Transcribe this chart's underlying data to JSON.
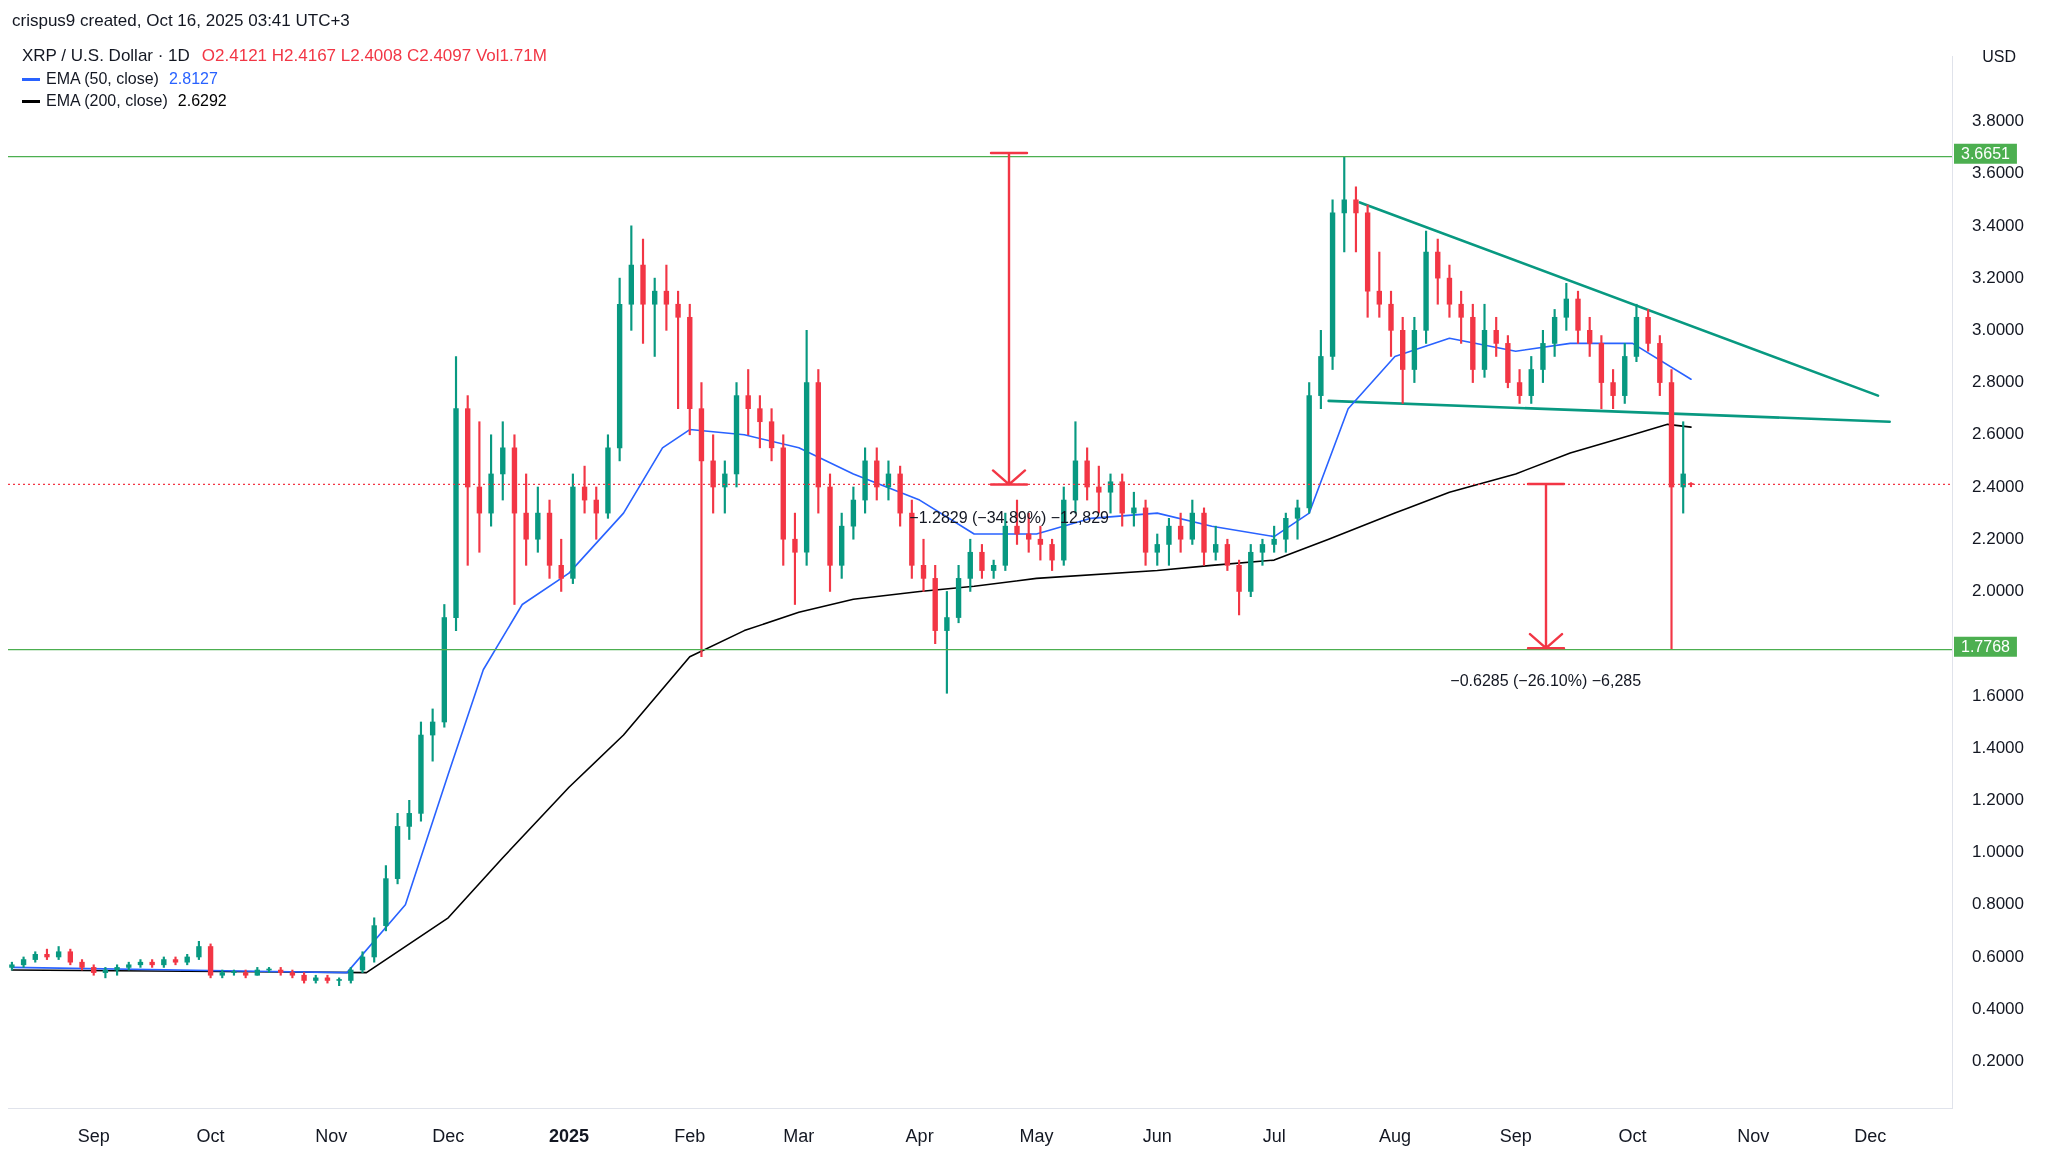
{
  "chart_data": {
    "type": "candlestick",
    "title": "XRP / U.S. Dollar · 1D",
    "subtitle": "O2.4121 H2.4167 L2.4008 C2.4097 Vol1.71M",
    "ylabel": "USD",
    "x": [
      "2024-08-11",
      "2024-08-14",
      "2024-08-17",
      "2024-08-20",
      "2024-08-23",
      "2024-08-26",
      "2024-08-29",
      "2024-09-01",
      "2024-09-04",
      "2024-09-07",
      "2024-09-10",
      "2024-09-13",
      "2024-09-16",
      "2024-09-19",
      "2024-09-22",
      "2024-09-25",
      "2024-09-28",
      "2024-10-01",
      "2024-10-04",
      "2024-10-07",
      "2024-10-10",
      "2024-10-13",
      "2024-10-16",
      "2024-10-19",
      "2024-10-22",
      "2024-10-25",
      "2024-10-28",
      "2024-10-31",
      "2024-11-03",
      "2024-11-06",
      "2024-11-09",
      "2024-11-12",
      "2024-11-15",
      "2024-11-18",
      "2024-11-21",
      "2024-11-24",
      "2024-11-27",
      "2024-11-30",
      "2024-12-03",
      "2024-12-06",
      "2024-12-09",
      "2024-12-12",
      "2024-12-15",
      "2024-12-18",
      "2024-12-21",
      "2024-12-24",
      "2024-12-27",
      "2024-12-30",
      "2025-01-02",
      "2025-01-05",
      "2025-01-08",
      "2025-01-11",
      "2025-01-14",
      "2025-01-17",
      "2025-01-20",
      "2025-01-23",
      "2025-01-26",
      "2025-01-29",
      "2025-02-01",
      "2025-02-04",
      "2025-02-07",
      "2025-02-10",
      "2025-02-13",
      "2025-02-16",
      "2025-02-19",
      "2025-02-22",
      "2025-02-25",
      "2025-02-28",
      "2025-03-03",
      "2025-03-06",
      "2025-03-09",
      "2025-03-12",
      "2025-03-15",
      "2025-03-18",
      "2025-03-21",
      "2025-03-24",
      "2025-03-27",
      "2025-03-30",
      "2025-04-02",
      "2025-04-05",
      "2025-04-08",
      "2025-04-11",
      "2025-04-14",
      "2025-04-17",
      "2025-04-20",
      "2025-04-23",
      "2025-04-26",
      "2025-04-29",
      "2025-05-02",
      "2025-05-05",
      "2025-05-08",
      "2025-05-11",
      "2025-05-14",
      "2025-05-17",
      "2025-05-20",
      "2025-05-23",
      "2025-05-26",
      "2025-05-29",
      "2025-06-01",
      "2025-06-04",
      "2025-06-07",
      "2025-06-10",
      "2025-06-13",
      "2025-06-16",
      "2025-06-19",
      "2025-06-22",
      "2025-06-25",
      "2025-06-28",
      "2025-07-01",
      "2025-07-04",
      "2025-07-07",
      "2025-07-10",
      "2025-07-13",
      "2025-07-16",
      "2025-07-19",
      "2025-07-22",
      "2025-07-25",
      "2025-07-28",
      "2025-07-31",
      "2025-08-03",
      "2025-08-06",
      "2025-08-09",
      "2025-08-12",
      "2025-08-15",
      "2025-08-18",
      "2025-08-21",
      "2025-08-24",
      "2025-08-27",
      "2025-08-30",
      "2025-09-02",
      "2025-09-05",
      "2025-09-08",
      "2025-09-11",
      "2025-09-14",
      "2025-09-17",
      "2025-09-20",
      "2025-09-23",
      "2025-09-26",
      "2025-09-29",
      "2025-10-02",
      "2025-10-05",
      "2025-10-08",
      "2025-10-11",
      "2025-10-14",
      "2025-10-16"
    ],
    "ohlc": [
      [
        0.56,
        0.58,
        0.55,
        0.57
      ],
      [
        0.57,
        0.6,
        0.56,
        0.59
      ],
      [
        0.59,
        0.62,
        0.58,
        0.61
      ],
      [
        0.61,
        0.63,
        0.59,
        0.6
      ],
      [
        0.6,
        0.64,
        0.59,
        0.62
      ],
      [
        0.62,
        0.63,
        0.57,
        0.58
      ],
      [
        0.58,
        0.59,
        0.55,
        0.56
      ],
      [
        0.56,
        0.57,
        0.53,
        0.54
      ],
      [
        0.54,
        0.56,
        0.52,
        0.55
      ],
      [
        0.55,
        0.57,
        0.53,
        0.56
      ],
      [
        0.56,
        0.58,
        0.55,
        0.57
      ],
      [
        0.57,
        0.59,
        0.56,
        0.58
      ],
      [
        0.58,
        0.59,
        0.56,
        0.57
      ],
      [
        0.57,
        0.6,
        0.56,
        0.59
      ],
      [
        0.59,
        0.6,
        0.57,
        0.58
      ],
      [
        0.58,
        0.61,
        0.57,
        0.6
      ],
      [
        0.6,
        0.66,
        0.59,
        0.64
      ],
      [
        0.64,
        0.65,
        0.52,
        0.53
      ],
      [
        0.53,
        0.55,
        0.52,
        0.54
      ],
      [
        0.54,
        0.55,
        0.53,
        0.54
      ],
      [
        0.54,
        0.55,
        0.52,
        0.53
      ],
      [
        0.53,
        0.56,
        0.53,
        0.55
      ],
      [
        0.55,
        0.56,
        0.54,
        0.55
      ],
      [
        0.55,
        0.56,
        0.53,
        0.54
      ],
      [
        0.54,
        0.55,
        0.52,
        0.53
      ],
      [
        0.53,
        0.54,
        0.5,
        0.51
      ],
      [
        0.51,
        0.53,
        0.5,
        0.52
      ],
      [
        0.52,
        0.53,
        0.5,
        0.51
      ],
      [
        0.51,
        0.52,
        0.49,
        0.51
      ],
      [
        0.51,
        0.56,
        0.5,
        0.55
      ],
      [
        0.55,
        0.62,
        0.54,
        0.6
      ],
      [
        0.6,
        0.75,
        0.58,
        0.72
      ],
      [
        0.72,
        0.95,
        0.7,
        0.9
      ],
      [
        0.9,
        1.15,
        0.88,
        1.1
      ],
      [
        1.1,
        1.2,
        1.05,
        1.15
      ],
      [
        1.15,
        1.5,
        1.12,
        1.45
      ],
      [
        1.45,
        1.55,
        1.35,
        1.5
      ],
      [
        1.5,
        1.95,
        1.48,
        1.9
      ],
      [
        1.9,
        2.9,
        1.85,
        2.7
      ],
      [
        2.7,
        2.75,
        2.1,
        2.4
      ],
      [
        2.4,
        2.65,
        2.15,
        2.3
      ],
      [
        2.3,
        2.6,
        2.25,
        2.45
      ],
      [
        2.45,
        2.65,
        2.35,
        2.55
      ],
      [
        2.55,
        2.6,
        1.95,
        2.3
      ],
      [
        2.3,
        2.45,
        2.1,
        2.2
      ],
      [
        2.2,
        2.4,
        2.15,
        2.3
      ],
      [
        2.3,
        2.35,
        2.05,
        2.1
      ],
      [
        2.1,
        2.2,
        2.0,
        2.05
      ],
      [
        2.05,
        2.45,
        2.03,
        2.4
      ],
      [
        2.4,
        2.48,
        2.3,
        2.35
      ],
      [
        2.35,
        2.4,
        2.2,
        2.3
      ],
      [
        2.3,
        2.6,
        2.28,
        2.55
      ],
      [
        2.55,
        3.2,
        2.5,
        3.1
      ],
      [
        3.1,
        3.4,
        3.0,
        3.25
      ],
      [
        3.25,
        3.35,
        2.95,
        3.1
      ],
      [
        3.1,
        3.2,
        2.9,
        3.15
      ],
      [
        3.15,
        3.25,
        3.0,
        3.1
      ],
      [
        3.1,
        3.15,
        2.7,
        3.05
      ],
      [
        3.05,
        3.1,
        2.6,
        2.7
      ],
      [
        2.7,
        2.8,
        1.75,
        2.5
      ],
      [
        2.5,
        2.6,
        2.3,
        2.4
      ],
      [
        2.4,
        2.5,
        2.3,
        2.45
      ],
      [
        2.45,
        2.8,
        2.4,
        2.75
      ],
      [
        2.75,
        2.85,
        2.6,
        2.7
      ],
      [
        2.7,
        2.75,
        2.55,
        2.65
      ],
      [
        2.65,
        2.7,
        2.5,
        2.55
      ],
      [
        2.55,
        2.6,
        2.1,
        2.2
      ],
      [
        2.2,
        2.3,
        1.95,
        2.15
      ],
      [
        2.15,
        3.0,
        2.1,
        2.8
      ],
      [
        2.8,
        2.85,
        2.3,
        2.4
      ],
      [
        2.4,
        2.45,
        2.0,
        2.1
      ],
      [
        2.1,
        2.3,
        2.05,
        2.25
      ],
      [
        2.25,
        2.4,
        2.2,
        2.35
      ],
      [
        2.35,
        2.55,
        2.3,
        2.5
      ],
      [
        2.5,
        2.55,
        2.35,
        2.4
      ],
      [
        2.4,
        2.5,
        2.35,
        2.45
      ],
      [
        2.45,
        2.48,
        2.25,
        2.3
      ],
      [
        2.3,
        2.35,
        2.05,
        2.1
      ],
      [
        2.1,
        2.2,
        2.0,
        2.05
      ],
      [
        2.05,
        2.1,
        1.8,
        1.85
      ],
      [
        1.85,
        2.0,
        1.61,
        1.9
      ],
      [
        1.9,
        2.1,
        1.88,
        2.05
      ],
      [
        2.05,
        2.2,
        2.0,
        2.15
      ],
      [
        2.15,
        2.18,
        2.05,
        2.08
      ],
      [
        2.08,
        2.12,
        2.05,
        2.1
      ],
      [
        2.1,
        2.3,
        2.08,
        2.25
      ],
      [
        2.25,
        2.35,
        2.18,
        2.22
      ],
      [
        2.22,
        2.3,
        2.15,
        2.2
      ],
      [
        2.2,
        2.25,
        2.12,
        2.18
      ],
      [
        2.18,
        2.2,
        2.08,
        2.12
      ],
      [
        2.12,
        2.4,
        2.1,
        2.35
      ],
      [
        2.35,
        2.65,
        2.3,
        2.5
      ],
      [
        2.5,
        2.55,
        2.35,
        2.4
      ],
      [
        2.4,
        2.48,
        2.3,
        2.38
      ],
      [
        2.38,
        2.45,
        2.3,
        2.42
      ],
      [
        2.42,
        2.45,
        2.25,
        2.3
      ],
      [
        2.3,
        2.38,
        2.25,
        2.32
      ],
      [
        2.32,
        2.35,
        2.1,
        2.15
      ],
      [
        2.15,
        2.22,
        2.1,
        2.18
      ],
      [
        2.18,
        2.28,
        2.1,
        2.25
      ],
      [
        2.25,
        2.3,
        2.15,
        2.2
      ],
      [
        2.2,
        2.35,
        2.18,
        2.3
      ],
      [
        2.3,
        2.32,
        2.1,
        2.15
      ],
      [
        2.15,
        2.25,
        2.12,
        2.18
      ],
      [
        2.18,
        2.2,
        2.08,
        2.1
      ],
      [
        2.1,
        2.12,
        1.91,
        2.0
      ],
      [
        2.0,
        2.18,
        1.98,
        2.15
      ],
      [
        2.15,
        2.2,
        2.1,
        2.18
      ],
      [
        2.18,
        2.25,
        2.15,
        2.2
      ],
      [
        2.2,
        2.3,
        2.15,
        2.28
      ],
      [
        2.28,
        2.35,
        2.2,
        2.32
      ],
      [
        2.32,
        2.8,
        2.3,
        2.75
      ],
      [
        2.75,
        3.0,
        2.7,
        2.9
      ],
      [
        2.9,
        3.5,
        2.85,
        3.45
      ],
      [
        3.45,
        3.6651,
        3.3,
        3.5
      ],
      [
        3.5,
        3.55,
        3.3,
        3.45
      ],
      [
        3.45,
        3.48,
        3.05,
        3.15
      ],
      [
        3.15,
        3.3,
        3.05,
        3.1
      ],
      [
        3.1,
        3.15,
        2.9,
        3.0
      ],
      [
        3.0,
        3.05,
        2.72,
        2.85
      ],
      [
        2.85,
        3.05,
        2.8,
        3.0
      ],
      [
        3.0,
        3.38,
        2.95,
        3.3
      ],
      [
        3.3,
        3.35,
        3.1,
        3.2
      ],
      [
        3.2,
        3.25,
        3.05,
        3.1
      ],
      [
        3.1,
        3.15,
        2.95,
        3.05
      ],
      [
        3.05,
        3.1,
        2.8,
        2.85
      ],
      [
        2.85,
        3.1,
        2.82,
        3.0
      ],
      [
        3.0,
        3.05,
        2.9,
        2.95
      ],
      [
        2.95,
        2.98,
        2.78,
        2.8
      ],
      [
        2.8,
        2.85,
        2.72,
        2.75
      ],
      [
        2.75,
        2.9,
        2.72,
        2.85
      ],
      [
        2.85,
        3.0,
        2.8,
        2.95
      ],
      [
        2.95,
        3.08,
        2.9,
        3.05
      ],
      [
        3.05,
        3.18,
        3.0,
        3.12
      ],
      [
        3.12,
        3.15,
        2.95,
        3.0
      ],
      [
        3.0,
        3.05,
        2.9,
        2.95
      ],
      [
        2.95,
        2.98,
        2.7,
        2.8
      ],
      [
        2.8,
        2.85,
        2.7,
        2.75
      ],
      [
        2.75,
        2.95,
        2.72,
        2.9
      ],
      [
        2.9,
        3.1,
        2.88,
        3.05
      ],
      [
        3.05,
        3.08,
        2.92,
        2.95
      ],
      [
        2.95,
        2.98,
        2.75,
        2.8
      ],
      [
        2.8,
        2.85,
        1.7768,
        2.4
      ],
      [
        2.4,
        2.65,
        2.3,
        2.45
      ],
      [
        2.4121,
        2.4167,
        2.4008,
        2.4097
      ]
    ],
    "series": [
      {
        "type": "line",
        "name": "EMA (50, close)",
        "color": "#2962ff",
        "x": [
          "2024-08-11",
          "2024-11-05",
          "2024-11-20",
          "2024-12-01",
          "2024-12-10",
          "2024-12-20",
          "2025-01-01",
          "2025-01-15",
          "2025-01-25",
          "2025-02-01",
          "2025-02-15",
          "2025-03-01",
          "2025-03-15",
          "2025-04-01",
          "2025-04-15",
          "2025-05-01",
          "2025-05-15",
          "2025-06-01",
          "2025-06-15",
          "2025-07-01",
          "2025-07-10",
          "2025-07-20",
          "2025-08-01",
          "2025-08-15",
          "2025-09-01",
          "2025-09-15",
          "2025-10-01",
          "2025-10-16"
        ],
        "values": [
          0.56,
          0.54,
          0.8,
          1.3,
          1.7,
          1.95,
          2.07,
          2.3,
          2.55,
          2.62,
          2.6,
          2.55,
          2.45,
          2.35,
          2.22,
          2.22,
          2.28,
          2.3,
          2.25,
          2.21,
          2.3,
          2.7,
          2.9,
          2.97,
          2.92,
          2.95,
          2.95,
          2.8127
        ]
      },
      {
        "type": "line",
        "name": "EMA (200, close)",
        "color": "#000000",
        "x": [
          "2024-08-11",
          "2024-11-10",
          "2024-12-01",
          "2024-12-15",
          "2025-01-01",
          "2025-01-15",
          "2025-02-01",
          "2025-02-15",
          "2025-03-01",
          "2025-03-15",
          "2025-04-01",
          "2025-04-15",
          "2025-05-01",
          "2025-06-01",
          "2025-06-15",
          "2025-07-01",
          "2025-07-15",
          "2025-08-01",
          "2025-08-15",
          "2025-09-01",
          "2025-09-15",
          "2025-10-01",
          "2025-10-10",
          "2025-10-16"
        ],
        "values": [
          0.55,
          0.54,
          0.75,
          0.98,
          1.25,
          1.45,
          1.75,
          1.85,
          1.92,
          1.97,
          2.0,
          2.02,
          2.05,
          2.08,
          2.1,
          2.12,
          2.2,
          2.3,
          2.38,
          2.45,
          2.53,
          2.6,
          2.64,
          2.6292
        ]
      },
      {
        "type": "line",
        "color": "#089981",
        "x": [
          "2025-07-23",
          "2025-12-03"
        ],
        "values": [
          3.49,
          2.75
        ]
      },
      {
        "type": "line",
        "color": "#089981",
        "x": [
          "2025-07-15",
          "2025-12-06"
        ],
        "values": [
          2.73,
          2.65
        ]
      }
    ],
    "ref_lines": [
      {
        "axis": "y",
        "value": 3.6651,
        "label": "3.6651",
        "color": "#4caf50"
      },
      {
        "axis": "y",
        "value": 1.7768,
        "label": "1.7768",
        "color": "#4caf50"
      },
      {
        "axis": "y",
        "value": 2.4097,
        "label": null,
        "color": "#f23645",
        "line_style": "dotted"
      }
    ],
    "annotations": [
      "crispus9 created, Oct 16, 2025 03:41 UTC+3",
      "−1.2829 (−34.89%) −12,829",
      "−0.6285 (−26.10%) −6,285",
      "2.8127",
      "2.6292"
    ],
    "xlim": [
      "2024-08-10",
      "2025-12-22"
    ],
    "xticks": [
      {
        "value": "2024-09-01",
        "label": "Sep"
      },
      {
        "value": "2024-10-01",
        "label": "Oct"
      },
      {
        "value": "2024-11-01",
        "label": "Nov"
      },
      {
        "value": "2024-12-01",
        "label": "Dec"
      },
      {
        "value": "2025-01-01",
        "label": "2025"
      },
      {
        "value": "2025-02-01",
        "label": "Feb"
      },
      {
        "value": "2025-03-01",
        "label": "Mar"
      },
      {
        "value": "2025-04-01",
        "label": "Apr"
      },
      {
        "value": "2025-05-01",
        "label": "May"
      },
      {
        "value": "2025-06-01",
        "label": "Jun"
      },
      {
        "value": "2025-07-01",
        "label": "Jul"
      },
      {
        "value": "2025-08-01",
        "label": "Aug"
      },
      {
        "value": "2025-09-01",
        "label": "Sep"
      },
      {
        "value": "2025-10-01",
        "label": "Oct"
      },
      {
        "value": "2025-11-01",
        "label": "Nov"
      },
      {
        "value": "2025-12-01",
        "label": "Dec"
      }
    ],
    "ylim": [
      0.02,
      4.05
    ],
    "yticks": [
      {
        "value": 0.2,
        "label": "0.2000"
      },
      {
        "value": 0.4,
        "label": "0.4000"
      },
      {
        "value": 0.6,
        "label": "0.6000"
      },
      {
        "value": 0.8,
        "label": "0.8000"
      },
      {
        "value": 1.0,
        "label": "1.0000"
      },
      {
        "value": 1.2,
        "label": "1.2000"
      },
      {
        "value": 1.4,
        "label": "1.4000"
      },
      {
        "value": 1.6,
        "label": "1.6000"
      },
      {
        "value": 2.0,
        "label": "2.0000"
      },
      {
        "value": 2.2,
        "label": "2.2000"
      },
      {
        "value": 2.4,
        "label": "2.4000"
      },
      {
        "value": 2.6,
        "label": "2.6000"
      },
      {
        "value": 2.8,
        "label": "2.8000"
      },
      {
        "value": 3.0,
        "label": "3.0000"
      },
      {
        "value": 3.2,
        "label": "3.2000"
      },
      {
        "value": 3.4,
        "label": "3.4000"
      },
      {
        "value": 3.6,
        "label": "3.6000"
      },
      {
        "value": 3.8,
        "label": "3.8000"
      }
    ],
    "legend": "top left"
  }
}
